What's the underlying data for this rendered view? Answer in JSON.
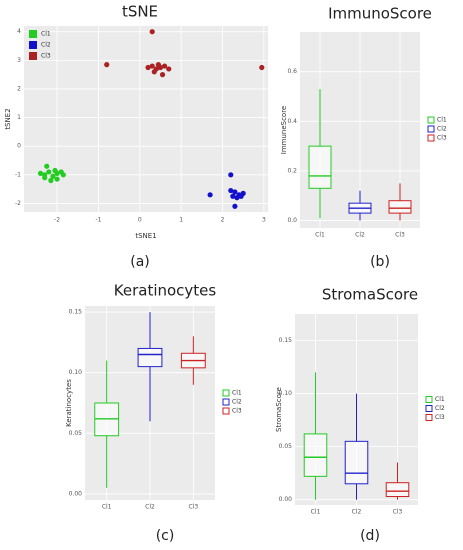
{
  "chart_data": [
    {
      "type": "scatter",
      "title": "tSNE",
      "caption": "(a)",
      "xlabel": "tSNE1",
      "ylabel": "tSNE2",
      "xlim": [
        -2.8,
        3.1
      ],
      "xticks": [
        -2,
        -1,
        0,
        1,
        2,
        3
      ],
      "ylim": [
        -2.3,
        4.2
      ],
      "yticks": [
        -2,
        -1,
        0,
        1,
        2,
        3,
        4
      ],
      "series": [
        {
          "name": "Cl1",
          "color": "#22cc22",
          "x": [
            -2.4,
            -2.3,
            -2.2,
            -2.1,
            -2.0,
            -1.9,
            -2.25,
            -2.15,
            -2.05,
            -1.85,
            -2.3,
            -2.0
          ],
          "y": [
            -0.95,
            -1.0,
            -0.9,
            -1.05,
            -0.95,
            -0.9,
            -0.7,
            -1.2,
            -0.85,
            -1.0,
            -1.1,
            -1.15
          ]
        },
        {
          "name": "Cl2",
          "color": "#1111cc",
          "x": [
            1.7,
            2.2,
            2.3,
            2.4,
            2.25,
            2.35,
            2.5,
            2.3,
            2.2,
            2.45
          ],
          "y": [
            -1.7,
            -1.0,
            -1.6,
            -1.7,
            -1.75,
            -1.8,
            -1.65,
            -2.1,
            -1.55,
            -1.75
          ]
        },
        {
          "name": "Cl3",
          "color": "#aa2222",
          "x": [
            -0.8,
            0.3,
            0.2,
            0.3,
            0.4,
            0.5,
            0.6,
            0.7,
            0.35,
            0.45,
            0.55,
            2.95
          ],
          "y": [
            2.85,
            4.0,
            2.75,
            2.8,
            2.7,
            2.75,
            2.8,
            2.7,
            2.6,
            2.85,
            2.5,
            2.75
          ]
        }
      ],
      "legend": "top-left"
    },
    {
      "type": "box",
      "title": "ImmunoScore",
      "caption": "(b)",
      "ylabel": "ImmuneScore",
      "categories": [
        "Cl1",
        "Cl2",
        "Cl3"
      ],
      "colors": [
        "#22cc22",
        "#2222cc",
        "#cc2222"
      ],
      "ylim": [
        -0.03,
        0.76
      ],
      "yticks": [
        {
          "value": 0,
          "label": "0.0"
        },
        {
          "value": 0.2,
          "label": "0.2"
        },
        {
          "value": 0.4,
          "label": "0.4"
        },
        {
          "value": 0.6,
          "label": "0.6"
        }
      ],
      "boxes": [
        {
          "min": 0.01,
          "q1": 0.13,
          "median": 0.18,
          "q3": 0.3,
          "max": 0.53
        },
        {
          "min": 0.0,
          "q1": 0.03,
          "median": 0.05,
          "q3": 0.07,
          "max": 0.12
        },
        {
          "min": 0.0,
          "q1": 0.03,
          "median": 0.05,
          "q3": 0.08,
          "max": 0.15
        }
      ]
    },
    {
      "type": "box",
      "title": "Keratinocytes",
      "caption": "(c)",
      "ylabel": "Keratinocytes",
      "categories": [
        "Cl1",
        "Cl2",
        "Cl3"
      ],
      "colors": [
        "#22cc22",
        "#2222cc",
        "#cc2222"
      ],
      "ylim": [
        -0.005,
        0.155
      ],
      "yticks": [
        {
          "value": 0,
          "label": "0.00"
        },
        {
          "value": 0.05,
          "label": "0.05"
        },
        {
          "value": 0.1,
          "label": "0.10"
        },
        {
          "value": 0.15,
          "label": "0.15"
        }
      ],
      "boxes": [
        {
          "min": 0.005,
          "q1": 0.048,
          "median": 0.062,
          "q3": 0.075,
          "max": 0.11
        },
        {
          "min": 0.06,
          "q1": 0.105,
          "median": 0.115,
          "q3": 0.12,
          "max": 0.15
        },
        {
          "min": 0.09,
          "q1": 0.104,
          "median": 0.11,
          "q3": 0.116,
          "max": 0.13
        }
      ]
    },
    {
      "type": "box",
      "title": "StromaScore",
      "caption": "(d)",
      "ylabel": "StromaScore",
      "categories": [
        "Cl1",
        "Cl2",
        "Cl3"
      ],
      "colors": [
        "#22cc22",
        "#2222cc",
        "#cc2222"
      ],
      "ylim": [
        -0.005,
        0.175
      ],
      "yticks": [
        {
          "value": 0,
          "label": "0.00"
        },
        {
          "value": 0.05,
          "label": "0.05"
        },
        {
          "value": 0.1,
          "label": "0.10"
        },
        {
          "value": 0.15,
          "label": "0.15"
        }
      ],
      "boxes": [
        {
          "min": 0.0,
          "q1": 0.022,
          "median": 0.04,
          "q3": 0.062,
          "max": 0.12
        },
        {
          "min": 0.0,
          "q1": 0.015,
          "median": 0.025,
          "q3": 0.055,
          "max": 0.1
        },
        {
          "min": 0.0,
          "q1": 0.003,
          "median": 0.008,
          "q3": 0.016,
          "max": 0.035
        }
      ]
    }
  ]
}
